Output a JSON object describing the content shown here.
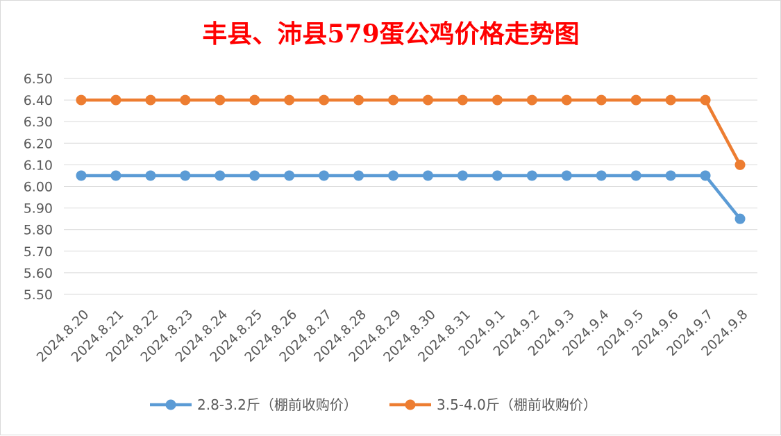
{
  "chart_data": {
    "type": "line",
    "title": "丰县、沛县579蛋公鸡价格走势图",
    "xlabel": "",
    "ylabel": "",
    "ylim": [
      5.5,
      6.5
    ],
    "ytick_step": 0.1,
    "ytick_labels": [
      "5.50",
      "5.60",
      "5.70",
      "5.80",
      "5.90",
      "6.00",
      "6.10",
      "6.20",
      "6.30",
      "6.40",
      "6.50"
    ],
    "grid": true,
    "legend_position": "bottom",
    "categories": [
      "2024.8.20",
      "2024.8.21",
      "2024.8.22",
      "2024.8.23",
      "2024.8.24",
      "2024.8.25",
      "2024.8.26",
      "2024.8.27",
      "2024.8.28",
      "2024.8.29",
      "2024.8.30",
      "2024.8.31",
      "2024.9.1",
      "2024.9.2",
      "2024.9.3",
      "2024.9.4",
      "2024.9.5",
      "2024.9.6",
      "2024.9.7",
      "2024.9.8"
    ],
    "series": [
      {
        "name": "2.8-3.2斤（棚前收购价）",
        "color": "#5b9bd5",
        "values": [
          6.05,
          6.05,
          6.05,
          6.05,
          6.05,
          6.05,
          6.05,
          6.05,
          6.05,
          6.05,
          6.05,
          6.05,
          6.05,
          6.05,
          6.05,
          6.05,
          6.05,
          6.05,
          6.05,
          5.85
        ]
      },
      {
        "name": "3.5-4.0斤（棚前收购价）",
        "color": "#ed7d31",
        "values": [
          6.4,
          6.4,
          6.4,
          6.4,
          6.4,
          6.4,
          6.4,
          6.4,
          6.4,
          6.4,
          6.4,
          6.4,
          6.4,
          6.4,
          6.4,
          6.4,
          6.4,
          6.4,
          6.4,
          6.1
        ]
      }
    ]
  }
}
